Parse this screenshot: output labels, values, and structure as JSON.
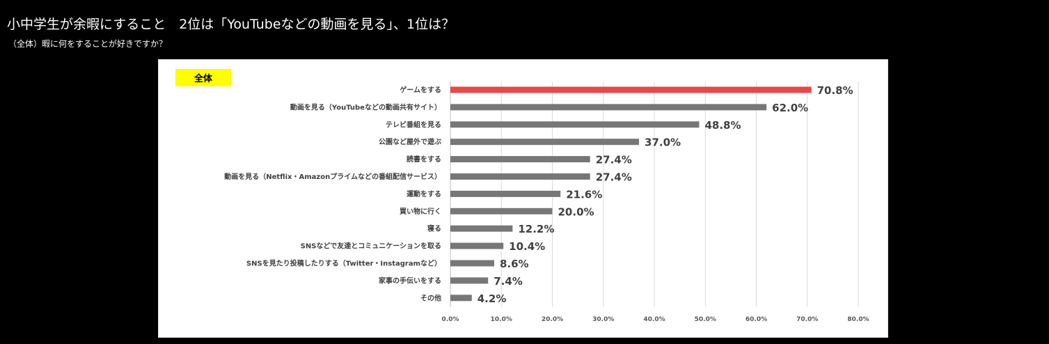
{
  "page": {
    "headline": "小中学生が余暇にすること　2位は「YouTubeなどの動画を見る」、1位は？",
    "subline": "（全体）暇に何をすることが好きですか？"
  },
  "chart_data": {
    "type": "bar",
    "orientation": "horizontal",
    "title": "",
    "group_label": "全体",
    "categories": [
      "ゲームをする",
      "動画を見る（YouTubeなどの動画共有サイト）",
      "テレビ番組を見る",
      "公園など屋外で遊ぶ",
      "読書をする",
      "動画を見る（Netflix・Amazonプライムなどの番組配信サービス）",
      "運動をする",
      "買い物に行く",
      "寝る",
      "SNSなどで友達とコミュニケーションを取る",
      "SNSを見たり投稿したりする（Twitter・Instagramなど）",
      "家事の手伝いをする",
      "その他"
    ],
    "values": [
      70.8,
      62.0,
      48.8,
      37.0,
      27.4,
      27.4,
      21.6,
      20.0,
      12.2,
      10.4,
      8.6,
      7.4,
      4.2
    ],
    "value_labels": [
      "70.8%",
      "62.0%",
      "48.8%",
      "37.0%",
      "27.4%",
      "27.4%",
      "21.6%",
      "20.0%",
      "12.2%",
      "10.4%",
      "8.6%",
      "7.4%",
      "4.2%"
    ],
    "xlim": [
      0,
      80
    ],
    "xticks": [
      0,
      10,
      20,
      30,
      40,
      50,
      60,
      70,
      80
    ],
    "xtick_labels": [
      "0.0%",
      "10.0%",
      "20.0%",
      "30.0%",
      "40.0%",
      "50.0%",
      "60.0%",
      "70.0%",
      "80.0%"
    ],
    "grid": true,
    "colors": {
      "highlight": "#e8474c",
      "bar": "#777777",
      "grid": "#d9d9d9",
      "badge": "#ffff00"
    }
  }
}
